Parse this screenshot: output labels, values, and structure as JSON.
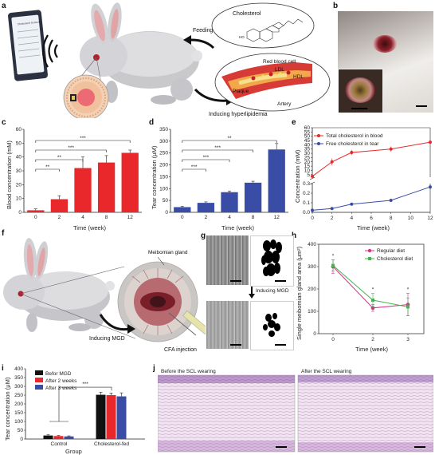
{
  "panels": {
    "a": "a",
    "b": "b",
    "c": "c",
    "d": "d",
    "e": "e",
    "f": "f",
    "g": "g",
    "h": "h",
    "i": "i",
    "j": "j"
  },
  "panel_a": {
    "phone_title": "Cholesterol Sensor",
    "feeding": "Feeding",
    "cholesterol": "Cholesterol",
    "ho": "HO",
    "red_blood_cell": "Red blood cell",
    "ldl": "LDL",
    "hdl": "HDL",
    "plaque": "Plaque",
    "artery": "Artery",
    "inducing": "Inducing hyperlipidemia"
  },
  "panel_f": {
    "meibomian": "Meibomian gland",
    "inducing_mgd": "Inducing MGD",
    "cfa": "CFA injection"
  },
  "panel_g": {
    "inducing_mgd": "Inducing MGD"
  },
  "panel_j": {
    "before": "Before the SCL wearing",
    "after": "After the SCL wearing"
  },
  "colors": {
    "red": "#e8282b",
    "blue": "#3a4da6",
    "black": "#111111",
    "magenta": "#d6338a",
    "green": "#3fb84a"
  },
  "chart_data": [
    {
      "id": "c",
      "type": "bar",
      "categories": [
        "0",
        "2",
        "4",
        "8",
        "12"
      ],
      "values": [
        1.5,
        9.5,
        32,
        36,
        43
      ],
      "errors": [
        1,
        2.5,
        8,
        5,
        2
      ],
      "xlabel": "Time (week)",
      "ylabel": "Blood concentration (mM)",
      "ylim": [
        0,
        60
      ],
      "yticks": [
        "0",
        "10",
        "20",
        "30",
        "40",
        "50",
        "60"
      ],
      "significance": [
        {
          "from": 0,
          "to": 1,
          "label": "**"
        },
        {
          "from": 0,
          "to": 2,
          "label": "**"
        },
        {
          "from": 0,
          "to": 3,
          "label": "***"
        },
        {
          "from": 0,
          "to": 4,
          "label": "***"
        }
      ],
      "color": "#e8282b"
    },
    {
      "id": "d",
      "type": "bar",
      "categories": [
        "0",
        "2",
        "4",
        "8",
        "12"
      ],
      "values": [
        22,
        40,
        85,
        125,
        265
      ],
      "errors": [
        3,
        4,
        5,
        6,
        25
      ],
      "xlabel": "Time (week)",
      "ylabel": "Tear concentration (μM)",
      "ylim": [
        0,
        350
      ],
      "yticks": [
        "0",
        "50",
        "100",
        "150",
        "200",
        "250",
        "300",
        "350"
      ],
      "significance": [
        {
          "from": 0,
          "to": 1,
          "label": "***"
        },
        {
          "from": 0,
          "to": 2,
          "label": "***"
        },
        {
          "from": 0,
          "to": 3,
          "label": "***"
        },
        {
          "from": 0,
          "to": 4,
          "label": "**"
        }
      ],
      "color": "#3a4da6"
    },
    {
      "id": "e",
      "type": "line",
      "x": [
        0,
        2,
        4,
        8,
        12
      ],
      "xticks": [
        "0",
        "2",
        "4",
        "6",
        "8",
        "10",
        "12"
      ],
      "xlabel": "Time (week)",
      "ylabel": "Concentration (mM)",
      "upper_ylim": [
        2,
        60
      ],
      "upper_yticks": [
        "5",
        "10",
        "15",
        "20",
        "25",
        "30",
        "35",
        "40",
        "45",
        "50",
        "55",
        "60"
      ],
      "lower_ylim": [
        0,
        0.3
      ],
      "lower_yticks": [
        "0.0",
        "0.1",
        "0.2",
        "0.3"
      ],
      "series": [
        {
          "name": "Total cholesterol in blood",
          "values": [
            3,
            20,
            31,
            35,
            43
          ],
          "errors": [
            0.5,
            4,
            3,
            3,
            1
          ],
          "color": "#e8282b"
        },
        {
          "name": "Free cholesterol in tear",
          "values": [
            0.022,
            0.04,
            0.085,
            0.125,
            0.265
          ],
          "errors": [
            0.003,
            0.004,
            0.005,
            0.006,
            0.025
          ],
          "color": "#3a4da6"
        }
      ],
      "legend": "top-left"
    },
    {
      "id": "h",
      "type": "line",
      "x": [
        0,
        2,
        3
      ],
      "xticks": [
        "0",
        "2",
        "3"
      ],
      "xlabel": "Time (week)",
      "ylabel": "Single meibomian gland area (μm²)",
      "ylim": [
        0,
        400
      ],
      "yticks": [
        "0",
        "100",
        "200",
        "300",
        "400"
      ],
      "series": [
        {
          "name": "Regular diet",
          "values": [
            300,
            115,
            130
          ],
          "errors": [
            30,
            15,
            50
          ],
          "color": "#d6338a"
        },
        {
          "name": "Cholesterol diet",
          "values": [
            305,
            150,
            120
          ],
          "errors": [
            25,
            30,
            40
          ],
          "color": "#3fb84a"
        }
      ],
      "significance": [
        "*",
        "*",
        "*"
      ],
      "legend": "top-right"
    },
    {
      "id": "i",
      "type": "bar",
      "categories": [
        "Control",
        "Cholesterol-fed"
      ],
      "xlabel": "Group",
      "ylabel": "Tear concentration (μM)",
      "ylim": [
        0,
        400
      ],
      "yticks": [
        "0",
        "50",
        "100",
        "150",
        "200",
        "250",
        "300",
        "350",
        "400"
      ],
      "series": [
        {
          "name": "Befor MGD",
          "values": [
            20,
            252
          ],
          "errors": [
            4,
            15
          ],
          "color": "#111111"
        },
        {
          "name": "After 2 weeks",
          "values": [
            17,
            250
          ],
          "errors": [
            3,
            12
          ],
          "color": "#e8282b"
        },
        {
          "name": "After 3 weeks",
          "values": [
            15,
            243
          ],
          "errors": [
            3,
            20
          ],
          "color": "#3a4da6"
        }
      ],
      "significance": [
        {
          "from": 0,
          "to": 1,
          "label": "***"
        }
      ],
      "legend": "top-left"
    }
  ]
}
